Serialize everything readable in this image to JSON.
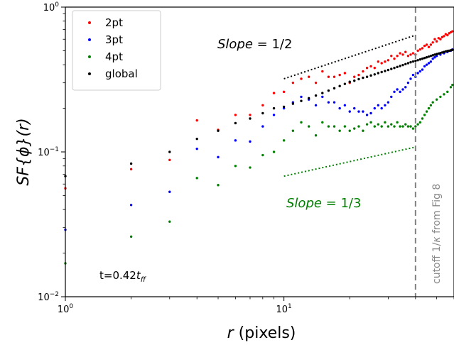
{
  "chart_data": {
    "type": "scatter",
    "title": "",
    "xscale": "log",
    "yscale": "log",
    "xlim": [
      1,
      60
    ],
    "ylim": [
      0.01,
      1
    ],
    "xlabel_italic": "r",
    "xlabel_rest": " (pixels)",
    "ylabel": "SF{ϕ}(r)",
    "xticks": [
      {
        "value": 1,
        "base": "10",
        "exp": "0"
      },
      {
        "value": 10,
        "base": "10",
        "exp": "1"
      }
    ],
    "yticks": [
      {
        "value": 0.01,
        "base": "10",
        "exp": "−2"
      },
      {
        "value": 0.1,
        "base": "10",
        "exp": "−1"
      },
      {
        "value": 1,
        "base": "10",
        "exp": "0"
      }
    ],
    "legend_position": "top-left",
    "grid": false,
    "series": [
      {
        "name": "2pt",
        "color": "#ff0000",
        "points": [
          [
            1,
            0.056
          ],
          [
            2,
            0.076
          ],
          [
            3,
            0.088
          ],
          [
            4,
            0.165
          ],
          [
            5,
            0.142
          ],
          [
            6,
            0.18
          ],
          [
            7,
            0.18
          ],
          [
            8,
            0.21
          ],
          [
            9,
            0.255
          ],
          [
            10,
            0.26
          ],
          [
            11,
            0.3
          ],
          [
            12,
            0.32
          ],
          [
            13,
            0.33
          ],
          [
            14,
            0.3
          ],
          [
            15,
            0.36
          ],
          [
            16,
            0.33
          ],
          [
            17,
            0.33
          ],
          [
            18,
            0.34
          ],
          [
            19,
            0.35
          ],
          [
            20,
            0.3
          ],
          [
            21,
            0.33
          ],
          [
            22,
            0.34
          ],
          [
            23,
            0.36
          ],
          [
            24,
            0.38
          ],
          [
            25,
            0.39
          ],
          [
            26,
            0.38
          ],
          [
            27,
            0.42
          ],
          [
            28,
            0.41
          ],
          [
            29,
            0.42
          ],
          [
            30,
            0.43
          ],
          [
            31,
            0.46
          ],
          [
            32,
            0.44
          ],
          [
            33,
            0.46
          ],
          [
            34,
            0.48
          ],
          [
            35,
            0.47
          ],
          [
            36,
            0.49
          ],
          [
            37,
            0.46
          ],
          [
            38,
            0.47
          ],
          [
            39,
            0.48
          ],
          [
            40,
            0.47
          ],
          [
            41,
            0.5
          ],
          [
            42,
            0.51
          ],
          [
            43,
            0.52
          ],
          [
            44,
            0.54
          ],
          [
            45,
            0.55
          ],
          [
            46,
            0.53
          ],
          [
            47,
            0.55
          ],
          [
            48,
            0.57
          ],
          [
            49,
            0.6
          ],
          [
            50,
            0.58
          ],
          [
            51,
            0.61
          ],
          [
            52,
            0.6
          ],
          [
            53,
            0.62
          ],
          [
            54,
            0.63
          ],
          [
            55,
            0.65
          ],
          [
            56,
            0.64
          ],
          [
            57,
            0.66
          ],
          [
            58,
            0.67
          ],
          [
            59,
            0.68
          ]
        ]
      },
      {
        "name": "3pt",
        "color": "#0000ff",
        "points": [
          [
            1,
            0.029
          ],
          [
            2,
            0.043
          ],
          [
            3,
            0.053
          ],
          [
            4,
            0.105
          ],
          [
            5,
            0.092
          ],
          [
            6,
            0.12
          ],
          [
            7,
            0.118
          ],
          [
            8,
            0.15
          ],
          [
            9,
            0.18
          ],
          [
            10,
            0.2
          ],
          [
            11,
            0.22
          ],
          [
            12,
            0.24
          ],
          [
            13,
            0.23
          ],
          [
            14,
            0.21
          ],
          [
            15,
            0.24
          ],
          [
            16,
            0.22
          ],
          [
            17,
            0.22
          ],
          [
            18,
            0.2
          ],
          [
            19,
            0.21
          ],
          [
            20,
            0.19
          ],
          [
            21,
            0.2
          ],
          [
            22,
            0.19
          ],
          [
            23,
            0.19
          ],
          [
            24,
            0.18
          ],
          [
            25,
            0.185
          ],
          [
            26,
            0.2
          ],
          [
            27,
            0.21
          ],
          [
            28,
            0.2
          ],
          [
            29,
            0.21
          ],
          [
            30,
            0.22
          ],
          [
            31,
            0.24
          ],
          [
            32,
            0.26
          ],
          [
            33,
            0.27
          ],
          [
            34,
            0.26
          ],
          [
            35,
            0.27
          ],
          [
            36,
            0.28
          ],
          [
            37,
            0.3
          ],
          [
            38,
            0.32
          ],
          [
            39,
            0.34
          ],
          [
            40,
            0.33
          ],
          [
            41,
            0.35
          ],
          [
            42,
            0.36
          ],
          [
            43,
            0.37
          ],
          [
            44,
            0.39
          ],
          [
            45,
            0.4
          ],
          [
            46,
            0.41
          ],
          [
            47,
            0.42
          ],
          [
            48,
            0.44
          ],
          [
            49,
            0.45
          ],
          [
            50,
            0.46
          ],
          [
            52,
            0.47
          ],
          [
            54,
            0.48
          ],
          [
            56,
            0.49
          ],
          [
            58,
            0.5
          ],
          [
            59,
            0.51
          ]
        ]
      },
      {
        "name": "4pt",
        "color": "#008000",
        "points": [
          [
            1,
            0.017
          ],
          [
            2,
            0.026
          ],
          [
            3,
            0.033
          ],
          [
            4,
            0.066
          ],
          [
            5,
            0.059
          ],
          [
            6,
            0.08
          ],
          [
            7,
            0.078
          ],
          [
            8,
            0.095
          ],
          [
            9,
            0.1
          ],
          [
            10,
            0.12
          ],
          [
            11,
            0.14
          ],
          [
            12,
            0.16
          ],
          [
            13,
            0.15
          ],
          [
            14,
            0.13
          ],
          [
            15,
            0.16
          ],
          [
            16,
            0.15
          ],
          [
            17,
            0.15
          ],
          [
            18,
            0.14
          ],
          [
            19,
            0.15
          ],
          [
            20,
            0.14
          ],
          [
            21,
            0.145
          ],
          [
            22,
            0.15
          ],
          [
            23,
            0.14
          ],
          [
            24,
            0.155
          ],
          [
            25,
            0.16
          ],
          [
            26,
            0.15
          ],
          [
            27,
            0.155
          ],
          [
            28,
            0.15
          ],
          [
            29,
            0.16
          ],
          [
            30,
            0.15
          ],
          [
            31,
            0.155
          ],
          [
            32,
            0.15
          ],
          [
            33,
            0.16
          ],
          [
            34,
            0.15
          ],
          [
            35,
            0.15
          ],
          [
            36,
            0.155
          ],
          [
            37,
            0.15
          ],
          [
            38,
            0.15
          ],
          [
            39,
            0.145
          ],
          [
            40,
            0.15
          ],
          [
            41,
            0.155
          ],
          [
            42,
            0.16
          ],
          [
            43,
            0.17
          ],
          [
            44,
            0.18
          ],
          [
            45,
            0.19
          ],
          [
            46,
            0.2
          ],
          [
            47,
            0.21
          ],
          [
            48,
            0.22
          ],
          [
            50,
            0.23
          ],
          [
            52,
            0.24
          ],
          [
            54,
            0.25
          ],
          [
            56,
            0.26
          ],
          [
            58,
            0.28
          ],
          [
            59,
            0.29
          ]
        ]
      },
      {
        "name": "global",
        "color": "#000000",
        "points": [
          [
            1,
            0.068
          ],
          [
            2,
            0.083
          ],
          [
            3,
            0.1
          ],
          [
            4,
            0.123
          ],
          [
            5,
            0.14
          ],
          [
            6,
            0.158
          ],
          [
            7,
            0.17
          ],
          [
            8,
            0.185
          ],
          [
            9,
            0.2
          ],
          [
            10,
            0.205
          ],
          [
            11,
            0.215
          ],
          [
            12,
            0.225
          ],
          [
            13,
            0.235
          ],
          [
            14,
            0.245
          ],
          [
            15,
            0.255
          ],
          [
            16,
            0.265
          ],
          [
            17,
            0.275
          ],
          [
            18,
            0.285
          ],
          [
            19,
            0.295
          ],
          [
            20,
            0.305
          ],
          [
            21,
            0.31
          ],
          [
            22,
            0.318
          ],
          [
            23,
            0.325
          ],
          [
            24,
            0.33
          ],
          [
            25,
            0.337
          ],
          [
            26,
            0.343
          ],
          [
            27,
            0.35
          ],
          [
            28,
            0.356
          ],
          [
            29,
            0.362
          ],
          [
            30,
            0.368
          ],
          [
            31,
            0.374
          ],
          [
            32,
            0.38
          ],
          [
            33,
            0.386
          ],
          [
            34,
            0.392
          ],
          [
            35,
            0.398
          ],
          [
            36,
            0.404
          ],
          [
            37,
            0.41
          ],
          [
            38,
            0.416
          ],
          [
            39,
            0.421
          ],
          [
            40,
            0.425
          ],
          [
            41,
            0.43
          ],
          [
            42,
            0.435
          ],
          [
            43,
            0.44
          ],
          [
            44,
            0.445
          ],
          [
            45,
            0.45
          ],
          [
            46,
            0.455
          ],
          [
            47,
            0.46
          ],
          [
            48,
            0.465
          ],
          [
            49,
            0.47
          ],
          [
            50,
            0.474
          ],
          [
            51,
            0.478
          ],
          [
            52,
            0.482
          ],
          [
            53,
            0.486
          ],
          [
            54,
            0.49
          ],
          [
            55,
            0.494
          ],
          [
            56,
            0.498
          ],
          [
            57,
            0.5
          ],
          [
            58,
            0.503
          ],
          [
            59,
            0.506
          ]
        ]
      }
    ],
    "reference_lines": [
      {
        "name": "slope-1-2-line",
        "color": "#000000",
        "x": [
          10,
          40
        ],
        "y": [
          0.32,
          0.64
        ]
      },
      {
        "name": "slope-1-3-line",
        "color": "#008000",
        "x": [
          10,
          40
        ],
        "y": [
          0.068,
          0.108
        ]
      }
    ],
    "cutoff": {
      "x": 40,
      "color": "#808080",
      "label_main": "cutoff 1/",
      "label_kappa": "κ",
      "label_end": " from Fig 8"
    },
    "annotations": {
      "slope_half": {
        "prefix": "Slope",
        "text": " = 1/2",
        "color": "#000000"
      },
      "slope_third": {
        "prefix": "Slope",
        "text": " = 1/3",
        "color": "#008000"
      },
      "time": {
        "text": "t=0.42",
        "sub": "ff",
        "italic": "t"
      }
    }
  }
}
